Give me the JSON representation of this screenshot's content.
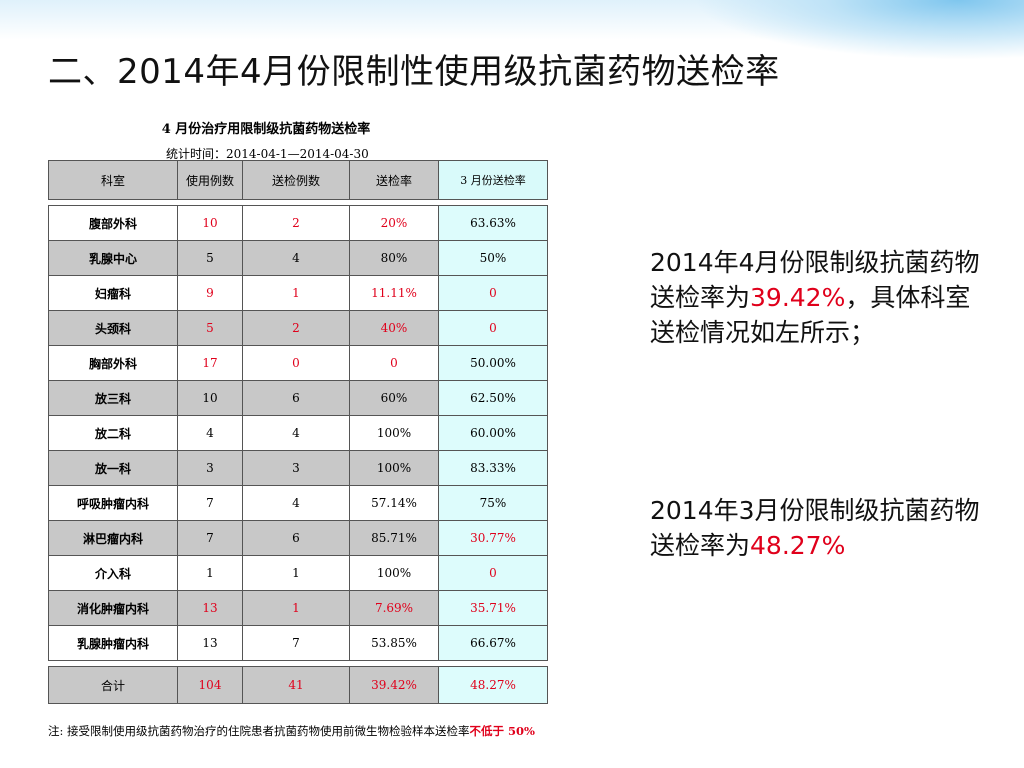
{
  "slide": {
    "title": "二、2014年4月份限制性使用级抗菌药物送检率"
  },
  "table": {
    "title": "4 月份治疗用限制级抗菌药物送检率",
    "time_label": "统计时间：",
    "time_range": "2014-04-1—2014-04-30",
    "headers": [
      "科室",
      "使用例数",
      "送检例数",
      "送检率",
      "3 月份送检率"
    ],
    "rows": [
      {
        "dept": "腹部外科",
        "used": "10",
        "sent": "2",
        "rate": "20%",
        "march": "63.63%",
        "red": [
          true,
          true,
          true,
          false
        ]
      },
      {
        "dept": "乳腺中心",
        "used": "5",
        "sent": "4",
        "rate": "80%",
        "march": "50%",
        "red": [
          false,
          false,
          false,
          false
        ]
      },
      {
        "dept": "妇瘤科",
        "used": "9",
        "sent": "1",
        "rate": "11.11%",
        "march": "0",
        "red": [
          true,
          true,
          true,
          true
        ]
      },
      {
        "dept": "头颈科",
        "used": "5",
        "sent": "2",
        "rate": "40%",
        "march": "0",
        "red": [
          true,
          true,
          true,
          true
        ]
      },
      {
        "dept": "胸部外科",
        "used": "17",
        "sent": "0",
        "rate": "0",
        "march": "50.00%",
        "red": [
          true,
          true,
          true,
          false
        ]
      },
      {
        "dept": "放三科",
        "used": "10",
        "sent": "6",
        "rate": "60%",
        "march": "62.50%",
        "red": [
          false,
          false,
          false,
          false
        ]
      },
      {
        "dept": "放二科",
        "used": "4",
        "sent": "4",
        "rate": "100%",
        "march": "60.00%",
        "red": [
          false,
          false,
          false,
          false
        ]
      },
      {
        "dept": "放一科",
        "used": "3",
        "sent": "3",
        "rate": "100%",
        "march": "83.33%",
        "red": [
          false,
          false,
          false,
          false
        ]
      },
      {
        "dept": "呼吸肿瘤内科",
        "used": "7",
        "sent": "4",
        "rate": "57.14%",
        "march": "75%",
        "red": [
          false,
          false,
          false,
          false
        ]
      },
      {
        "dept": "淋巴瘤内科",
        "used": "7",
        "sent": "6",
        "rate": "85.71%",
        "march": "30.77%",
        "red": [
          false,
          false,
          false,
          true
        ]
      },
      {
        "dept": "介入科",
        "used": "1",
        "sent": "1",
        "rate": "100%",
        "march": "0",
        "red": [
          false,
          false,
          false,
          true
        ]
      },
      {
        "dept": "消化肿瘤内科",
        "used": "13",
        "sent": "1",
        "rate": "7.69%",
        "march": "35.71%",
        "red": [
          true,
          true,
          true,
          true
        ]
      },
      {
        "dept": "乳腺肿瘤内科",
        "used": "13",
        "sent": "7",
        "rate": "53.85%",
        "march": "66.67%",
        "red": [
          false,
          false,
          false,
          false
        ]
      }
    ],
    "total": {
      "dept": "合计",
      "used": "104",
      "sent": "41",
      "rate": "39.42%",
      "march": "48.27%"
    },
    "note_prefix": "注: 接受限制使用级抗菌药物治疗的住院患者抗菌药物使用前微生物检验样本送检率",
    "note_emphasis": "不低于 50%"
  },
  "side": {
    "april_text": "2014年4月份限制级抗菌药物送检率为",
    "april_value": "39.42%",
    "april_suffix": "，具体科室送检情况如左所示；",
    "march_text": "2014年3月份限制级抗菌药物送检率为",
    "march_value": "48.27%"
  },
  "colors": {
    "red": "#e0001b",
    "header_gray": "#c8c8c8",
    "cyan": "#ddfcfc"
  }
}
